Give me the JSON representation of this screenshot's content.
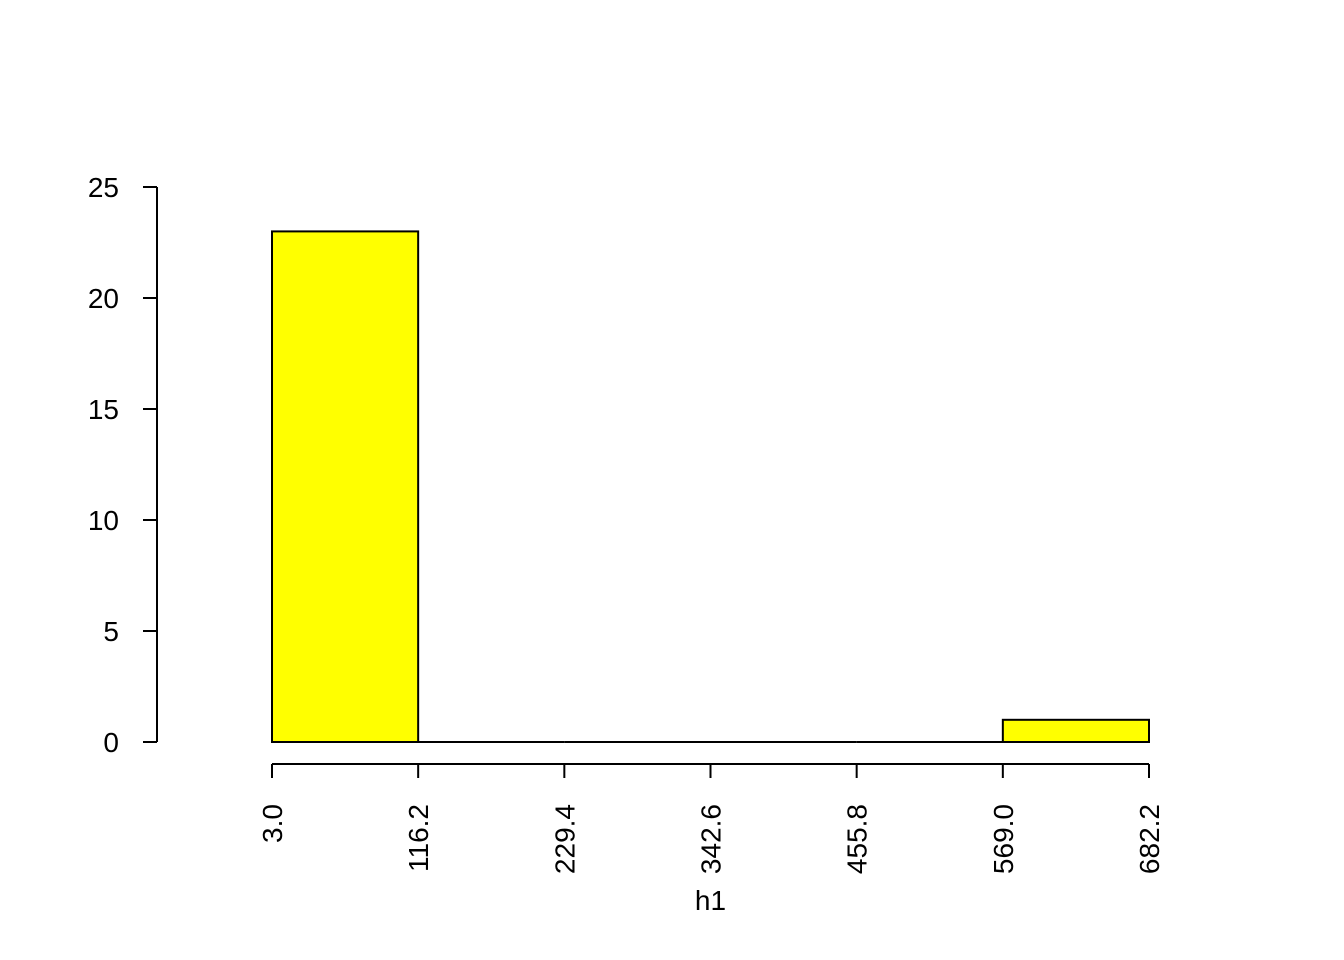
{
  "chart_data": {
    "type": "bar",
    "subtype": "histogram",
    "title": "",
    "xlabel": "h1",
    "ylabel": "",
    "bin_edges": [
      3.0,
      116.2,
      229.4,
      342.6,
      455.8,
      569.0,
      682.2
    ],
    "x_tick_labels": [
      "3.0",
      "116.2",
      "229.4",
      "342.6",
      "455.8",
      "569.0",
      "682.2"
    ],
    "counts": [
      23,
      0,
      0,
      0,
      0,
      1
    ],
    "ylim": [
      0,
      25
    ],
    "y_ticks": [
      0,
      5,
      10,
      15,
      20,
      25
    ],
    "y_tick_labels": [
      "0",
      "5",
      "10",
      "15",
      "20",
      "25"
    ],
    "bar_color": "#ffff00",
    "border_color": "#000000",
    "grid": false,
    "legend": "none"
  }
}
